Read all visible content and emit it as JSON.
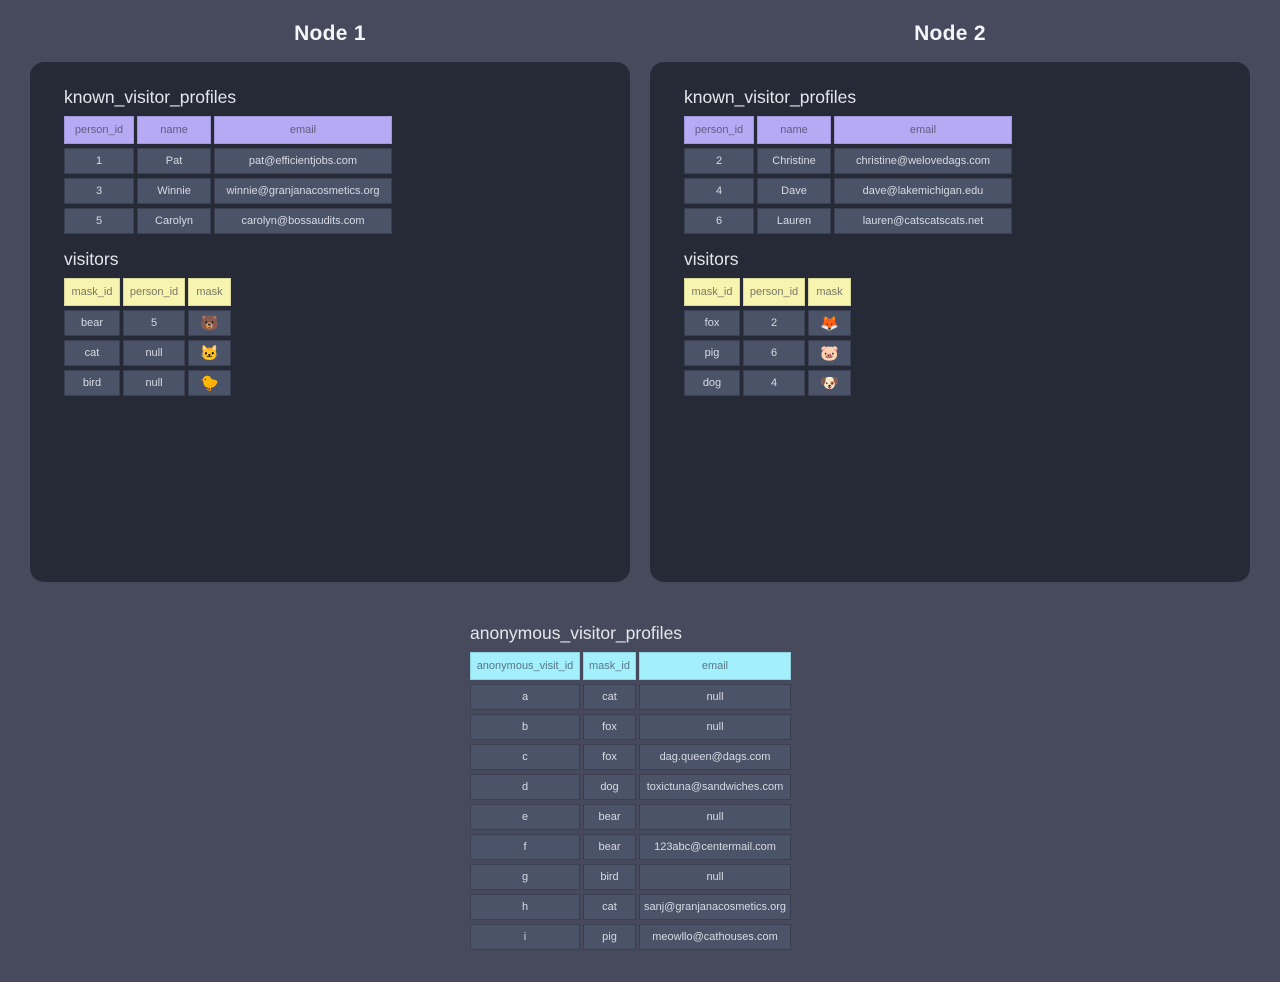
{
  "colors": {
    "page_bg": "#464a5c",
    "panel_bg": "#262a36",
    "row_cell_bg": "#4b5368",
    "known_header_bg": "#b7aaf4",
    "visitors_header_bg": "#f6f4ae",
    "anonymous_header_bg": "#a3f0fc",
    "text_light": "#d6dae3",
    "title_text": "#f4f5f7"
  },
  "node1": {
    "title": "Node 1",
    "known_visitor_profiles": {
      "title": "known_visitor_profiles",
      "headers": [
        "person_id",
        "name",
        "email"
      ],
      "rows": [
        [
          "1",
          "Pat",
          "pat@efficientjobs.com"
        ],
        [
          "3",
          "Winnie",
          "winnie@granjanacosmetics.org"
        ],
        [
          "5",
          "Carolyn",
          "carolyn@bossaudits.com"
        ]
      ]
    },
    "visitors": {
      "title": "visitors",
      "headers": [
        "mask_id",
        "person_id",
        "mask"
      ],
      "rows": [
        [
          "bear",
          "5",
          "🐻"
        ],
        [
          "cat",
          "null",
          "🐱"
        ],
        [
          "bird",
          "null",
          "🐤"
        ]
      ]
    }
  },
  "node2": {
    "title": "Node 2",
    "known_visitor_profiles": {
      "title": "known_visitor_profiles",
      "headers": [
        "person_id",
        "name",
        "email"
      ],
      "rows": [
        [
          "2",
          "Christine",
          "christine@welovedags.com"
        ],
        [
          "4",
          "Dave",
          "dave@lakemichigan.edu"
        ],
        [
          "6",
          "Lauren",
          "lauren@catscatscats.net"
        ]
      ]
    },
    "visitors": {
      "title": "visitors",
      "headers": [
        "mask_id",
        "person_id",
        "mask"
      ],
      "rows": [
        [
          "fox",
          "2",
          "🦊"
        ],
        [
          "pig",
          "6",
          "🐷"
        ],
        [
          "dog",
          "4",
          "🐶"
        ]
      ]
    }
  },
  "anonymous_visitor_profiles": {
    "title": "anonymous_visitor_profiles",
    "headers": [
      "anonymous_visit_id",
      "mask_id",
      "email"
    ],
    "rows": [
      [
        "a",
        "cat",
        "null"
      ],
      [
        "b",
        "fox",
        "null"
      ],
      [
        "c",
        "fox",
        "dag.queen@dags.com"
      ],
      [
        "d",
        "dog",
        "toxictuna@sandwiches.com"
      ],
      [
        "e",
        "bear",
        "null"
      ],
      [
        "f",
        "bear",
        "123abc@centermail.com"
      ],
      [
        "g",
        "bird",
        "null"
      ],
      [
        "h",
        "cat",
        "sanj@granjanacosmetics.org"
      ],
      [
        "i",
        "pig",
        "meowllo@cathouses.com"
      ]
    ]
  }
}
